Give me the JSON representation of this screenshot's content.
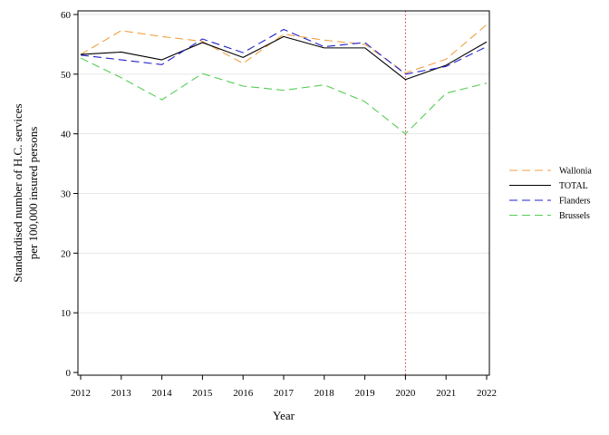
{
  "chart_data": {
    "type": "line",
    "x": [
      2012,
      2013,
      2014,
      2015,
      2016,
      2017,
      2018,
      2019,
      2020,
      2021,
      2022
    ],
    "xlabel": "Year",
    "ylabel_lines": [
      "Standardised number of H.C. services",
      "per 100,000 insured persons"
    ],
    "ylim": [
      0,
      60
    ],
    "yticks": [
      0,
      10,
      20,
      30,
      40,
      50,
      60
    ],
    "grid": true,
    "reference_line": {
      "x": 2020,
      "color": "#cc3333",
      "style": "dotted"
    },
    "legend_position": "right",
    "series": [
      {
        "name": "Wallonia",
        "color": "#f0a040",
        "dash": "dashed",
        "values": [
          53.3,
          57.3,
          56.3,
          55.5,
          51.8,
          56.7,
          55.7,
          55.0,
          50.2,
          52.5,
          58.3
        ]
      },
      {
        "name": "TOTAL",
        "color": "#000000",
        "dash": "solid",
        "values": [
          53.3,
          53.7,
          52.4,
          55.3,
          52.8,
          56.3,
          54.4,
          54.4,
          49.1,
          51.5,
          55.4
        ]
      },
      {
        "name": "Flanders",
        "color": "#2222cc",
        "dash": "dashed",
        "values": [
          53.2,
          52.4,
          51.6,
          55.9,
          53.6,
          57.5,
          54.6,
          55.3,
          50.0,
          51.3,
          54.6
        ]
      },
      {
        "name": "Brussels",
        "color": "#55cc55",
        "dash": "dashed",
        "values": [
          52.7,
          49.4,
          45.7,
          50.1,
          48.0,
          47.3,
          48.2,
          45.4,
          40.0,
          46.8,
          48.5
        ]
      }
    ]
  }
}
